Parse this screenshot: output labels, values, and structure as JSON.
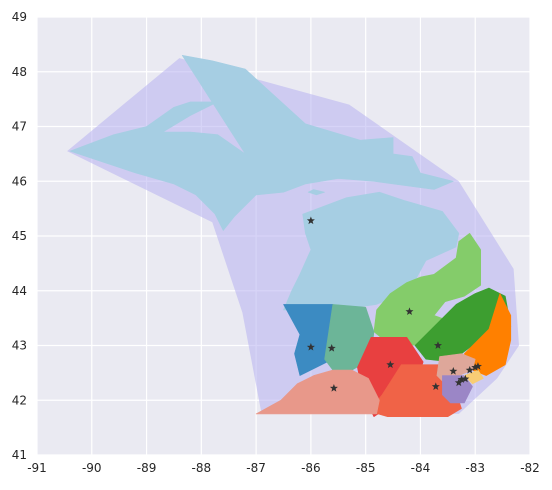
{
  "chart_data": {
    "type": "scatter",
    "title": "",
    "xlabel": "",
    "ylabel": "",
    "xlim": [
      -91,
      -82
    ],
    "ylim": [
      41,
      49
    ],
    "x_ticks": [
      -91,
      -90,
      -89,
      -88,
      -87,
      -86,
      -85,
      -84,
      -83,
      -82
    ],
    "y_ticks": [
      41,
      42,
      43,
      44,
      45,
      46,
      47,
      48,
      49
    ],
    "x_tick_labels": [
      "-91",
      "-90",
      "-89",
      "-88",
      "-87",
      "-86",
      "-85",
      "-84",
      "-83",
      "-82"
    ],
    "y_tick_labels": [
      "41",
      "42",
      "43",
      "44",
      "45",
      "46",
      "47",
      "48",
      "49"
    ],
    "grid": true,
    "background": "#eaeaf2",
    "hull": {
      "color": "#b6b0f0",
      "points": [
        [
          -90.45,
          46.55
        ],
        [
          -88.4,
          48.25
        ],
        [
          -85.3,
          47.4
        ],
        [
          -83.3,
          46.0
        ],
        [
          -82.3,
          44.4
        ],
        [
          -82.2,
          43.0
        ],
        [
          -82.6,
          42.4
        ],
        [
          -83.3,
          41.75
        ],
        [
          -86.9,
          41.75
        ],
        [
          -87.25,
          43.6
        ],
        [
          -87.8,
          45.25
        ]
      ]
    },
    "regions": [
      {
        "color": "#a6cee3",
        "polygon": [
          [
            -88.35,
            48.3
          ],
          [
            -87.8,
            48.2
          ],
          [
            -87.2,
            48.05
          ],
          [
            -86.1,
            47.05
          ],
          [
            -85.1,
            46.75
          ],
          [
            -84.5,
            46.8
          ],
          [
            -84.5,
            46.5
          ],
          [
            -84.15,
            46.45
          ],
          [
            -84.0,
            46.15
          ],
          [
            -83.4,
            46.0
          ],
          [
            -83.75,
            45.85
          ],
          [
            -84.5,
            45.95
          ],
          [
            -84.85,
            46.0
          ],
          [
            -85.5,
            46.05
          ],
          [
            -86.1,
            45.95
          ],
          [
            -86.5,
            45.8
          ],
          [
            -87.0,
            45.75
          ],
          [
            -87.4,
            45.35
          ],
          [
            -87.6,
            45.1
          ],
          [
            -87.75,
            45.4
          ],
          [
            -88.1,
            45.75
          ],
          [
            -88.5,
            45.95
          ],
          [
            -89.2,
            46.15
          ],
          [
            -90.4,
            46.55
          ],
          [
            -89.6,
            46.85
          ],
          [
            -89.0,
            47.0
          ],
          [
            -88.5,
            47.35
          ],
          [
            -88.2,
            47.45
          ],
          [
            -87.7,
            47.45
          ],
          [
            -88.2,
            47.2
          ],
          [
            -88.7,
            46.9
          ],
          [
            -88.2,
            46.9
          ],
          [
            -87.7,
            46.85
          ],
          [
            -87.2,
            46.5
          ]
        ]
      },
      {
        "color": "#a6cee3",
        "polygon": [
          [
            -86.15,
            45.4
          ],
          [
            -85.35,
            45.7
          ],
          [
            -84.75,
            45.8
          ],
          [
            -84.3,
            45.65
          ],
          [
            -83.6,
            45.45
          ],
          [
            -83.3,
            45.05
          ],
          [
            -83.35,
            44.8
          ],
          [
            -83.9,
            44.55
          ],
          [
            -84.2,
            44.0
          ],
          [
            -84.8,
            43.75
          ],
          [
            -85.5,
            43.65
          ],
          [
            -86.5,
            43.65
          ],
          [
            -86.35,
            44.0
          ],
          [
            -86.2,
            44.3
          ],
          [
            -86.0,
            44.75
          ],
          [
            -86.1,
            45.05
          ]
        ]
      },
      {
        "color": "#a6cee3",
        "polygon": [
          [
            -86.05,
            45.8
          ],
          [
            -85.9,
            45.75
          ],
          [
            -85.75,
            45.8
          ],
          [
            -85.95,
            45.85
          ]
        ]
      },
      {
        "color": "#84cc6a",
        "polygon": [
          [
            -84.8,
            43.65
          ],
          [
            -84.55,
            43.95
          ],
          [
            -84.25,
            44.15
          ],
          [
            -84.0,
            44.25
          ],
          [
            -83.75,
            44.3
          ],
          [
            -83.35,
            44.6
          ],
          [
            -83.3,
            44.9
          ],
          [
            -83.1,
            45.05
          ],
          [
            -82.9,
            44.75
          ],
          [
            -82.9,
            44.1
          ],
          [
            -83.2,
            43.9
          ],
          [
            -83.55,
            43.8
          ],
          [
            -83.75,
            43.55
          ],
          [
            -83.2,
            43.35
          ],
          [
            -83.5,
            43.15
          ],
          [
            -84.05,
            43.0
          ],
          [
            -84.6,
            43.05
          ],
          [
            -84.85,
            43.25
          ]
        ]
      },
      {
        "color": "#3d9e30",
        "polygon": [
          [
            -83.65,
            43.45
          ],
          [
            -83.35,
            43.75
          ],
          [
            -83.0,
            43.95
          ],
          [
            -82.75,
            44.05
          ],
          [
            -82.45,
            43.9
          ],
          [
            -82.35,
            43.35
          ],
          [
            -82.7,
            43.15
          ],
          [
            -83.05,
            43.0
          ],
          [
            -83.45,
            42.7
          ],
          [
            -83.9,
            42.75
          ],
          [
            -84.1,
            43.0
          ]
        ]
      },
      {
        "color": "#ff8000",
        "polygon": [
          [
            -82.55,
            43.95
          ],
          [
            -82.35,
            43.55
          ],
          [
            -82.35,
            43.1
          ],
          [
            -82.45,
            42.65
          ],
          [
            -82.8,
            42.45
          ],
          [
            -83.05,
            42.55
          ],
          [
            -83.2,
            42.85
          ],
          [
            -82.75,
            43.3
          ]
        ]
      },
      {
        "color": "#3c8bc2",
        "polygon": [
          [
            -86.5,
            43.75
          ],
          [
            -85.6,
            43.75
          ],
          [
            -85.6,
            42.75
          ],
          [
            -86.2,
            42.45
          ],
          [
            -86.3,
            42.85
          ],
          [
            -86.2,
            43.2
          ]
        ]
      },
      {
        "color": "#6cb598",
        "polygon": [
          [
            -85.6,
            43.75
          ],
          [
            -85.0,
            43.7
          ],
          [
            -84.85,
            43.25
          ],
          [
            -84.9,
            42.75
          ],
          [
            -85.25,
            42.55
          ],
          [
            -85.6,
            42.55
          ],
          [
            -85.75,
            42.75
          ]
        ]
      },
      {
        "color": "#e84040",
        "polygon": [
          [
            -84.9,
            43.15
          ],
          [
            -84.25,
            43.15
          ],
          [
            -83.95,
            42.7
          ],
          [
            -84.1,
            42.25
          ],
          [
            -84.4,
            42.0
          ],
          [
            -84.85,
            41.7
          ],
          [
            -85.05,
            42.1
          ],
          [
            -85.15,
            42.6
          ]
        ]
      },
      {
        "color": "#f06347",
        "polygon": [
          [
            -84.35,
            42.65
          ],
          [
            -83.65,
            42.65
          ],
          [
            -83.4,
            42.3
          ],
          [
            -83.25,
            41.85
          ],
          [
            -83.5,
            41.7
          ],
          [
            -84.6,
            41.7
          ],
          [
            -84.95,
            41.8
          ],
          [
            -84.7,
            42.1
          ]
        ]
      },
      {
        "color": "#e8988a",
        "polygon": [
          [
            -87.0,
            41.75
          ],
          [
            -86.55,
            42.0
          ],
          [
            -86.25,
            42.3
          ],
          [
            -85.95,
            42.45
          ],
          [
            -85.6,
            42.55
          ],
          [
            -85.25,
            42.55
          ],
          [
            -84.95,
            42.4
          ],
          [
            -84.75,
            42.0
          ],
          [
            -84.8,
            41.75
          ]
        ]
      },
      {
        "color": "#dea79a",
        "polygon": [
          [
            -83.65,
            42.8
          ],
          [
            -83.25,
            42.85
          ],
          [
            -83.0,
            42.75
          ],
          [
            -83.05,
            42.55
          ],
          [
            -83.3,
            42.45
          ],
          [
            -83.5,
            42.25
          ],
          [
            -83.7,
            42.45
          ]
        ]
      },
      {
        "color": "#9b86c6",
        "polygon": [
          [
            -83.6,
            42.45
          ],
          [
            -83.2,
            42.45
          ],
          [
            -83.05,
            42.25
          ],
          [
            -83.2,
            41.95
          ],
          [
            -83.45,
            41.95
          ],
          [
            -83.6,
            42.1
          ]
        ]
      },
      {
        "color": "#f8cd75",
        "polygon": [
          [
            -83.2,
            42.45
          ],
          [
            -82.95,
            42.55
          ],
          [
            -82.85,
            42.4
          ],
          [
            -83.05,
            42.3
          ]
        ]
      }
    ],
    "points": [
      {
        "x": -86.0,
        "y": 45.28
      },
      {
        "x": -84.2,
        "y": 43.62
      },
      {
        "x": -83.68,
        "y": 43.0
      },
      {
        "x": -86.0,
        "y": 42.97
      },
      {
        "x": -85.62,
        "y": 42.95
      },
      {
        "x": -84.55,
        "y": 42.65
      },
      {
        "x": -83.4,
        "y": 42.53
      },
      {
        "x": -83.0,
        "y": 42.6
      },
      {
        "x": -82.95,
        "y": 42.62
      },
      {
        "x": -83.1,
        "y": 42.55
      },
      {
        "x": -83.25,
        "y": 42.38
      },
      {
        "x": -83.18,
        "y": 42.39
      },
      {
        "x": -83.3,
        "y": 42.32
      },
      {
        "x": -83.72,
        "y": 42.25
      },
      {
        "x": -85.58,
        "y": 42.22
      }
    ],
    "point_marker": "star",
    "point_color": "#333333"
  }
}
